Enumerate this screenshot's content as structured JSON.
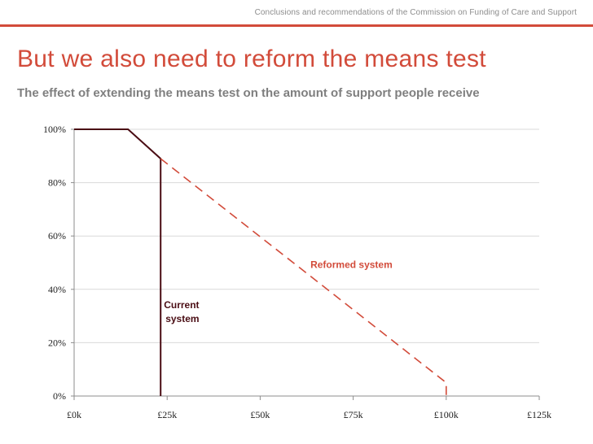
{
  "header": {
    "text": "Conclusions and recommendations of the Commission on Funding of Care and Support"
  },
  "slide": {
    "title": "But we also need to reform the means test",
    "subtitle": "The effect of extending the means test on the amount of support people receive"
  },
  "colors": {
    "accent": "#d24b3a",
    "current_line": "#4a0d14",
    "grid": "#d9d9d9",
    "subtitle": "#7f7f7f"
  },
  "chart_data": {
    "type": "line",
    "title": "The effect of extending the means test on the amount of support people receive",
    "xlabel": "",
    "ylabel": "",
    "xlim": [
      0,
      125
    ],
    "ylim": [
      0,
      100
    ],
    "x_ticks": [
      0,
      25,
      50,
      75,
      100,
      125
    ],
    "x_tick_labels": [
      "£0k",
      "£25k",
      "£50k",
      "£75k",
      "£100k",
      "£125k"
    ],
    "y_ticks": [
      0,
      20,
      40,
      60,
      80,
      100
    ],
    "y_tick_labels": [
      "0%",
      "20%",
      "40%",
      "60%",
      "80%",
      "100%"
    ],
    "grid": true,
    "series": [
      {
        "name": "Current system",
        "style": "solid",
        "points": [
          [
            0,
            100
          ],
          [
            14.5,
            100
          ],
          [
            23.25,
            89
          ],
          [
            23.25,
            0
          ]
        ]
      },
      {
        "name": "Reformed system",
        "style": "dashed",
        "points": [
          [
            23.25,
            89
          ],
          [
            100,
            5
          ],
          [
            100,
            0
          ]
        ]
      }
    ],
    "annotations": [
      {
        "lines": [
          "Current",
          "system"
        ],
        "series": "Current system"
      },
      {
        "lines": [
          "Reformed system"
        ],
        "series": "Reformed system"
      }
    ]
  }
}
